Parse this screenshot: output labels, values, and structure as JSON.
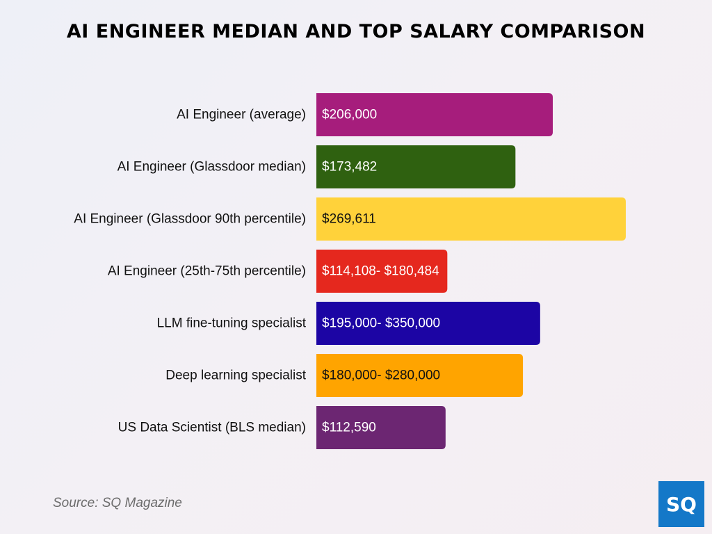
{
  "title": "AI ENGINEER MEDIAN AND TOP SALARY COMPARISON",
  "source": "Source: SQ Magazine",
  "logo_text": "SQ",
  "chart_data": {
    "type": "bar",
    "orientation": "horizontal",
    "title": "AI ENGINEER MEDIAN AND TOP SALARY COMPARISON",
    "xlabel": "",
    "ylabel": "",
    "grid": false,
    "xlim": [
      0,
      300000
    ],
    "categories": [
      "AI Engineer (average)",
      "AI Engineer (Glassdoor median)",
      "AI Engineer (Glassdoor 90th percentile)",
      "AI Engineer (25th-75th percentile)",
      "LLM fine-tuning specialist",
      "Deep learning specialist",
      "US Data Scientist (BLS median)"
    ],
    "bars": [
      {
        "value": 206000,
        "label": "$206,000",
        "color": "#a61d7c",
        "text_color": "#ffffff"
      },
      {
        "value": 173482,
        "label": "$173,482",
        "color": "#2f6110",
        "text_color": "#ffffff"
      },
      {
        "value": 269611,
        "label": "$269,611",
        "color": "#ffd23a",
        "text_color": "#111111"
      },
      {
        "value": 114108,
        "label": "$114,108- $180,484",
        "color": "#e5281e",
        "text_color": "#ffffff"
      },
      {
        "value": 195000,
        "label": "$195,000- $350,000",
        "color": "#1c05a4",
        "text_color": "#ffffff"
      },
      {
        "value": 180000,
        "label": "$180,000- $280,000",
        "color": "#ffa400",
        "text_color": "#111111"
      },
      {
        "value": 112590,
        "label": "$112,590",
        "color": "#6c2672",
        "text_color": "#ffffff"
      }
    ]
  }
}
